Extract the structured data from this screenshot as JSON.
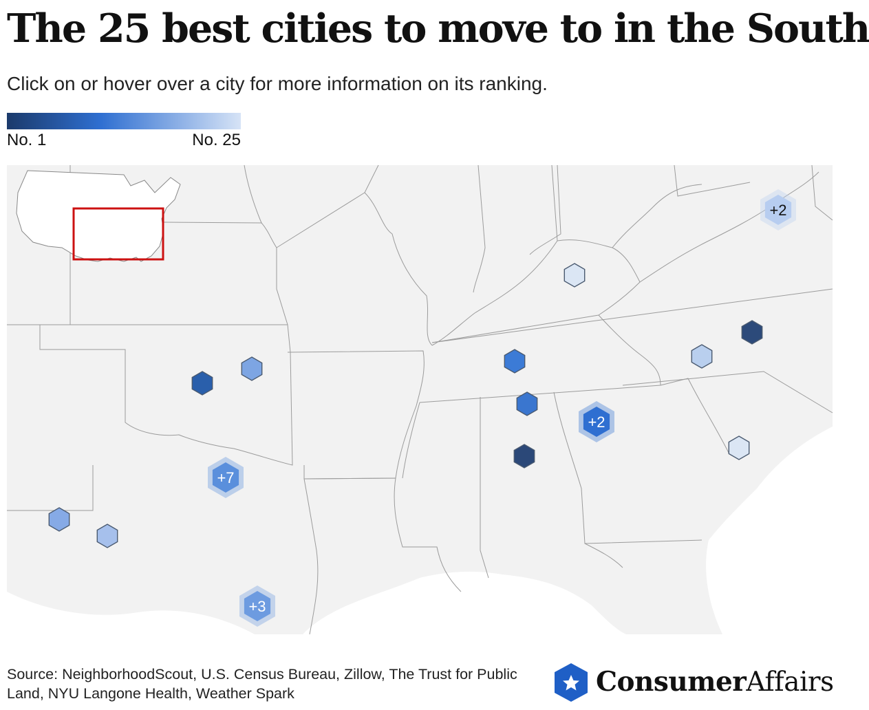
{
  "header": {
    "title": "The 25 best cities to move to in the South",
    "subtitle": "Click on or hover over a city for more information on its ranking."
  },
  "legend": {
    "min_label": "No. 1",
    "max_label": "No. 25",
    "color_start": "#1b3a6b",
    "color_mid": "#2f6fd1",
    "color_end": "#d6e3f6"
  },
  "map": {
    "background_color": "#f2f2f2",
    "border_color": "#9b9b9b",
    "inset_highlight_color": "#cc1111",
    "city_markers": [
      {
        "id": "kentucky",
        "color": "#dbe6f4",
        "cluster": ""
      },
      {
        "id": "virginia-cluster",
        "color": "#b7cdf0",
        "cluster": "+2"
      },
      {
        "id": "north-carolina-east",
        "color": "#2c4a7a",
        "cluster": ""
      },
      {
        "id": "north-carolina-west",
        "color": "#b9cfee",
        "cluster": ""
      },
      {
        "id": "tennessee",
        "color": "#3c7bd6",
        "cluster": ""
      },
      {
        "id": "alabama-north",
        "color": "#3a76cf",
        "cluster": ""
      },
      {
        "id": "alabama-central",
        "color": "#2b4878",
        "cluster": ""
      },
      {
        "id": "georgia-cluster",
        "color": "#2f6fd1",
        "cluster": "+2"
      },
      {
        "id": "south-carolina",
        "color": "#dbe6f4",
        "cluster": ""
      },
      {
        "id": "oklahoma-west",
        "color": "#2a5fab",
        "cluster": ""
      },
      {
        "id": "oklahoma-east",
        "color": "#7da5e3",
        "cluster": ""
      },
      {
        "id": "texas-dfw-cluster",
        "color": "#5a8fdc",
        "cluster": "+7"
      },
      {
        "id": "texas-west-1",
        "color": "#86aae6",
        "cluster": ""
      },
      {
        "id": "texas-west-2",
        "color": "#a6c0ec",
        "cluster": ""
      },
      {
        "id": "texas-houston-cluster",
        "color": "#6d9be0",
        "cluster": "+3"
      }
    ]
  },
  "footer": {
    "source_text": "Source: NeighborhoodScout, U.S. Census Bureau, Zillow, The Trust for Public Land, NYU Langone Health, Weather Spark",
    "logo_primary": "Consumer",
    "logo_secondary": "Affairs",
    "logo_color": "#1f5fc6"
  }
}
